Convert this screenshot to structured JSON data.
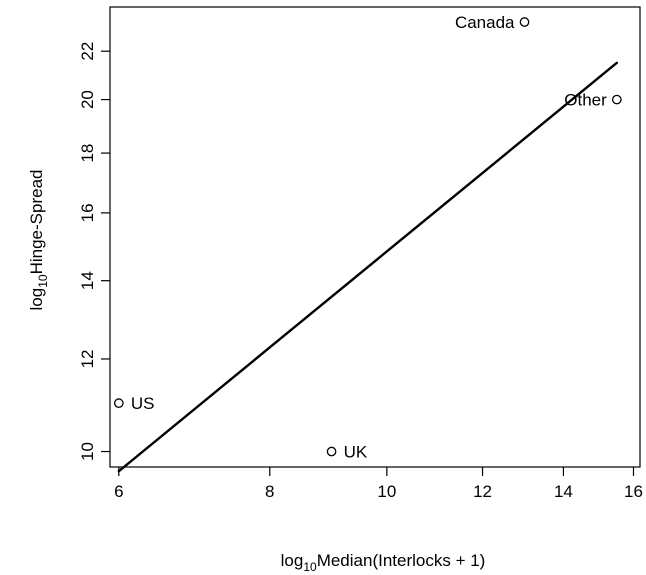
{
  "chart_data": {
    "type": "scatter",
    "xlabel": {
      "prefix": "log",
      "sub": "10",
      "suffix": "Median(Interlocks + 1)"
    },
    "ylabel": {
      "prefix": "log",
      "sub": "10",
      "suffix": "Hinge-Spread"
    },
    "x_scale": "log",
    "y_scale": "log",
    "xlim": [
      5.9,
      16.2
    ],
    "ylim": [
      9.7,
      24.0
    ],
    "x_ticks": [
      6,
      8,
      10,
      12,
      14,
      16
    ],
    "y_ticks": [
      10,
      12,
      14,
      16,
      18,
      20,
      22
    ],
    "x_tick_labels": [
      "6",
      "8",
      "10",
      "12",
      "14",
      "16"
    ],
    "y_tick_labels": [
      "10",
      "12",
      "14",
      "16",
      "18",
      "20",
      "22"
    ],
    "points": [
      {
        "label": "US",
        "x": 6.0,
        "y": 11.0,
        "label_side": "right"
      },
      {
        "label": "UK",
        "x": 9.0,
        "y": 10.0,
        "label_side": "right"
      },
      {
        "label": "Canada",
        "x": 13.0,
        "y": 23.3,
        "label_side": "left"
      },
      {
        "label": "Other",
        "x": 15.5,
        "y": 20.0,
        "label_side": "left"
      }
    ],
    "fit_line": {
      "x": [
        6.0,
        15.5
      ],
      "y": [
        9.62,
        21.5
      ]
    },
    "grid": false,
    "legend": "none",
    "colors": {
      "line": "#000000",
      "marker": "#000000",
      "background": "#ffffff"
    }
  }
}
